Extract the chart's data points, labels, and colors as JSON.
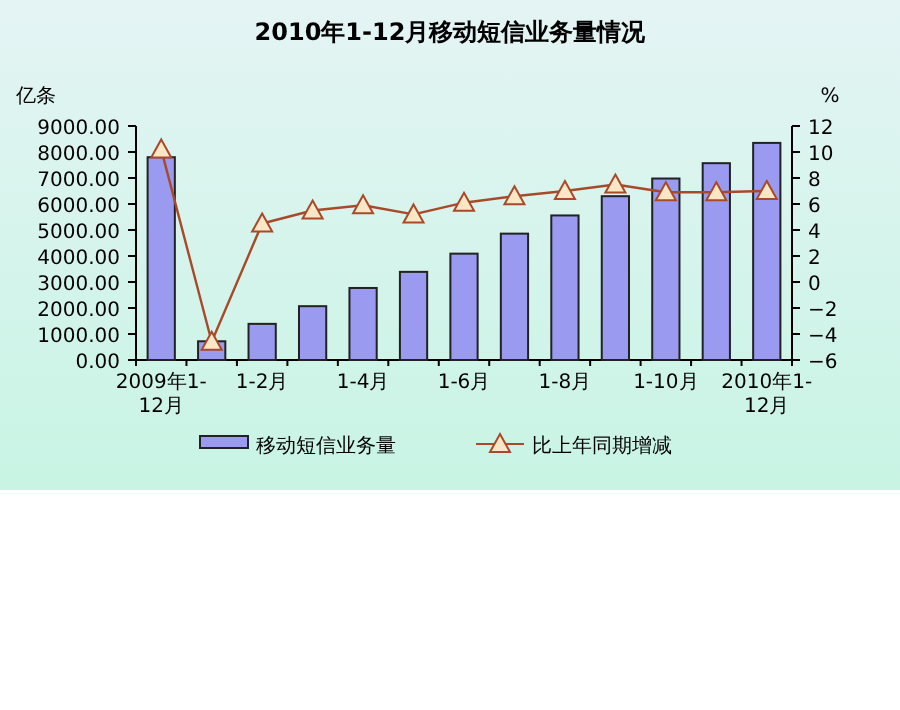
{
  "chart_data": {
    "type": "bar",
    "title": "2010年1-12月移动短信业务量情况",
    "ylabel": "亿条",
    "y2label": "%",
    "categories": [
      "2009年1-12月",
      null,
      "1-2月",
      null,
      "1-4月",
      null,
      "1-6月",
      null,
      "1-8月",
      null,
      "1-10月",
      null,
      "2010年1-12月"
    ],
    "series": [
      {
        "name": "移动短信业务量",
        "color": "#9a9af0",
        "values": [
          7800,
          720,
          1390,
          2070,
          2770,
          3390,
          4090,
          4860,
          5560,
          6300,
          6980,
          7570,
          8350
        ]
      },
      {
        "name": "比上年同期增减",
        "type": "line",
        "axis": "y2",
        "color": "#a84a2a",
        "marker": "triangle",
        "values": [
          10.2,
          -4.6,
          4.5,
          5.5,
          5.9,
          5.2,
          6.1,
          6.6,
          7.0,
          7.5,
          6.9,
          6.9,
          7.0
        ]
      }
    ],
    "ylim": [
      0,
      9000
    ],
    "yticks": [
      {
        "value": 0,
        "label": "0.00"
      },
      {
        "value": 1000,
        "label": "1000.00"
      },
      {
        "value": 2000,
        "label": "2000.00"
      },
      {
        "value": 3000,
        "label": "3000.00"
      },
      {
        "value": 4000,
        "label": "4000.00"
      },
      {
        "value": 5000,
        "label": "5000.00"
      },
      {
        "value": 6000,
        "label": "6000.00"
      },
      {
        "value": 7000,
        "label": "7000.00"
      },
      {
        "value": 8000,
        "label": "8000.00"
      },
      {
        "value": 9000,
        "label": "9000.00"
      }
    ],
    "y2lim": [
      -6,
      12
    ],
    "y2ticks": [
      -6,
      -4,
      -2,
      0,
      2,
      4,
      6,
      8,
      10,
      12
    ],
    "grid": false,
    "legend": "bottom"
  }
}
